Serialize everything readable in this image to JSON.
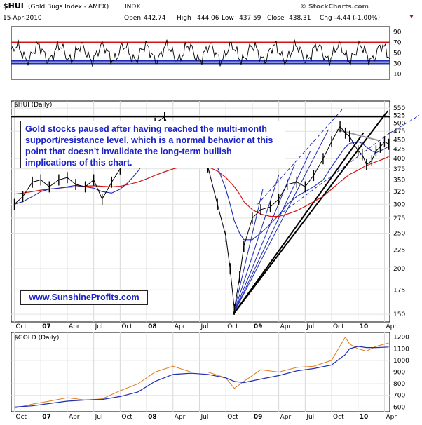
{
  "header": {
    "symbol": "$HUI",
    "name": "(Gold Bugs Index - AMEX)",
    "exchange": "INDX",
    "date": "15-Apr-2010",
    "open_label": "Open",
    "open": "442.74",
    "high_label": "High",
    "high": "444.06",
    "low_label": "Low",
    "low": "437.59",
    "close_label": "Close",
    "close": "438.31",
    "chg_label": "Chg",
    "chg": "-4.44 (-1.00%)",
    "brand": "© StockCharts.com"
  },
  "annotation": "Gold stocks paused after having reached the multi-month support/resistance level, which is a normal behavior at this point that doesn't invalidate the long-term bullish implications of this chart.",
  "website": "www.SunshineProfits.com",
  "colors": {
    "price": "#000000",
    "ma_short": "#1f2db5",
    "ma_long": "#d21414",
    "rsi_line": "#000000",
    "rsi_upper": "#d21414",
    "rsi_lower": "#1f2db5",
    "gold_price": "#e07b1c",
    "gold_ma": "#1f2db5",
    "annotation_text": "#1a22c8"
  },
  "chart_data": [
    {
      "type": "line",
      "panel": "indicator",
      "title": "",
      "y_ticks": [
        10,
        30,
        50,
        70,
        90
      ],
      "reference_lines": [
        70,
        35,
        30
      ],
      "ylim": [
        0,
        100
      ]
    },
    {
      "type": "line",
      "panel": "price",
      "title": "$HUI (Daily)",
      "y_scale": "log",
      "ylim": [
        143,
        575
      ],
      "y_ticks": [
        150,
        175,
        200,
        225,
        250,
        275,
        300,
        325,
        350,
        375,
        400,
        425,
        450,
        475,
        500,
        525,
        550
      ],
      "x_ticks": [
        "Oct",
        "07",
        "Apr",
        "Jul",
        "Oct",
        "08",
        "Apr",
        "Jul",
        "Oct",
        "09",
        "Apr",
        "Jul",
        "Oct",
        "10",
        "Apr"
      ],
      "x": [
        2006.75,
        2006.83,
        2006.92,
        2007.0,
        2007.08,
        2007.17,
        2007.25,
        2007.33,
        2007.42,
        2007.5,
        2007.58,
        2007.67,
        2007.75,
        2007.83,
        2007.92,
        2008.0,
        2008.08,
        2008.17,
        2008.25,
        2008.33,
        2008.42,
        2008.5,
        2008.58,
        2008.67,
        2008.75,
        2008.79,
        2008.83,
        2008.88,
        2008.92,
        2009.0,
        2009.08,
        2009.17,
        2009.25,
        2009.33,
        2009.42,
        2009.5,
        2009.58,
        2009.67,
        2009.75,
        2009.83,
        2009.88,
        2009.92,
        2010.0,
        2010.04,
        2010.08,
        2010.13,
        2010.17,
        2010.21,
        2010.25,
        2010.29
      ],
      "series": [
        {
          "values": [
            300,
            315,
            345,
            350,
            335,
            350,
            355,
            340,
            335,
            350,
            310,
            345,
            375,
            420,
            410,
            450,
            500,
            520,
            455,
            440,
            445,
            460,
            380,
            300,
            245,
            200,
            155,
            190,
            230,
            275,
            290,
            295,
            310,
            340,
            345,
            335,
            360,
            400,
            445,
            490,
            470,
            460,
            420,
            410,
            385,
            395,
            420,
            430,
            445,
            438
          ]
        },
        {
          "values": [
            300,
            305,
            315,
            325,
            330,
            332,
            335,
            338,
            335,
            332,
            325,
            322,
            330,
            345,
            370,
            400,
            420,
            440,
            450,
            445,
            440,
            440,
            420,
            380,
            330,
            300,
            270,
            250,
            240,
            240,
            250,
            265,
            280,
            300,
            315,
            325,
            335,
            350,
            380,
            410,
            430,
            440,
            445,
            440,
            430,
            420,
            415,
            420,
            425,
            432
          ]
        },
        {
          "values": [
            320,
            322,
            325,
            328,
            330,
            332,
            334,
            335,
            336,
            337,
            336,
            335,
            336,
            340,
            345,
            352,
            360,
            368,
            375,
            380,
            382,
            383,
            380,
            370,
            355,
            345,
            335,
            320,
            305,
            290,
            282,
            278,
            278,
            282,
            288,
            296,
            305,
            315,
            330,
            345,
            355,
            362,
            372,
            378,
            383,
            388,
            392,
            396,
            400,
            405
          ]
        }
      ]
    },
    {
      "type": "line",
      "panel": "lower",
      "title": "$GOLD (Daily)",
      "ylim": [
        560,
        1240
      ],
      "y_ticks": [
        600,
        700,
        800,
        900,
        1000,
        1100,
        1200
      ],
      "x_ticks": [
        "Oct",
        "07",
        "Apr",
        "Jul",
        "Oct",
        "08",
        "Apr",
        "Jul",
        "Oct",
        "09",
        "Apr",
        "Jul",
        "Oct",
        "10",
        "Apr"
      ],
      "x": [
        2006.75,
        2006.92,
        2007.08,
        2007.25,
        2007.42,
        2007.58,
        2007.75,
        2007.92,
        2008.08,
        2008.25,
        2008.42,
        2008.58,
        2008.75,
        2008.83,
        2008.92,
        2009.08,
        2009.25,
        2009.42,
        2009.58,
        2009.75,
        2009.88,
        2009.92,
        2010.0,
        2010.08,
        2010.17,
        2010.29
      ],
      "series": [
        {
          "values": [
            590,
            625,
            650,
            680,
            660,
            670,
            740,
            800,
            900,
            950,
            900,
            900,
            850,
            760,
            820,
            920,
            900,
            940,
            950,
            1000,
            1200,
            1140,
            1100,
            1080,
            1120,
            1150
          ]
        },
        {
          "values": [
            600,
            610,
            630,
            650,
            660,
            665,
            690,
            730,
            820,
            880,
            890,
            880,
            850,
            820,
            810,
            840,
            870,
            910,
            930,
            960,
            1050,
            1100,
            1120,
            1110,
            1110,
            1115
          ]
        }
      ]
    }
  ]
}
